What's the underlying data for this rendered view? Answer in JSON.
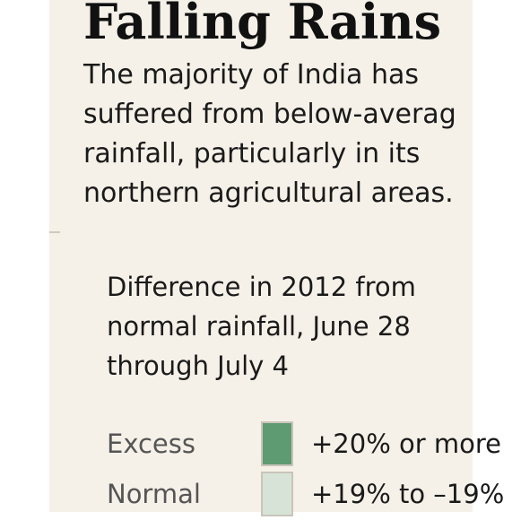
{
  "header": {
    "title": "Falling Rains",
    "description_lines": [
      "The majority of India has",
      "suffered from below-averag",
      "rainfall, particularly in its",
      "northern agricultural areas."
    ]
  },
  "legend": {
    "title_lines": [
      "Difference in 2012 from",
      "normal rainfall, June 28",
      "through July 4"
    ],
    "items": [
      {
        "label": "Excess",
        "range": "+20% or more",
        "color": "#5e9b72"
      },
      {
        "label": "Normal",
        "range": "+19% to –19%",
        "color": "#d6e3d6"
      }
    ]
  }
}
